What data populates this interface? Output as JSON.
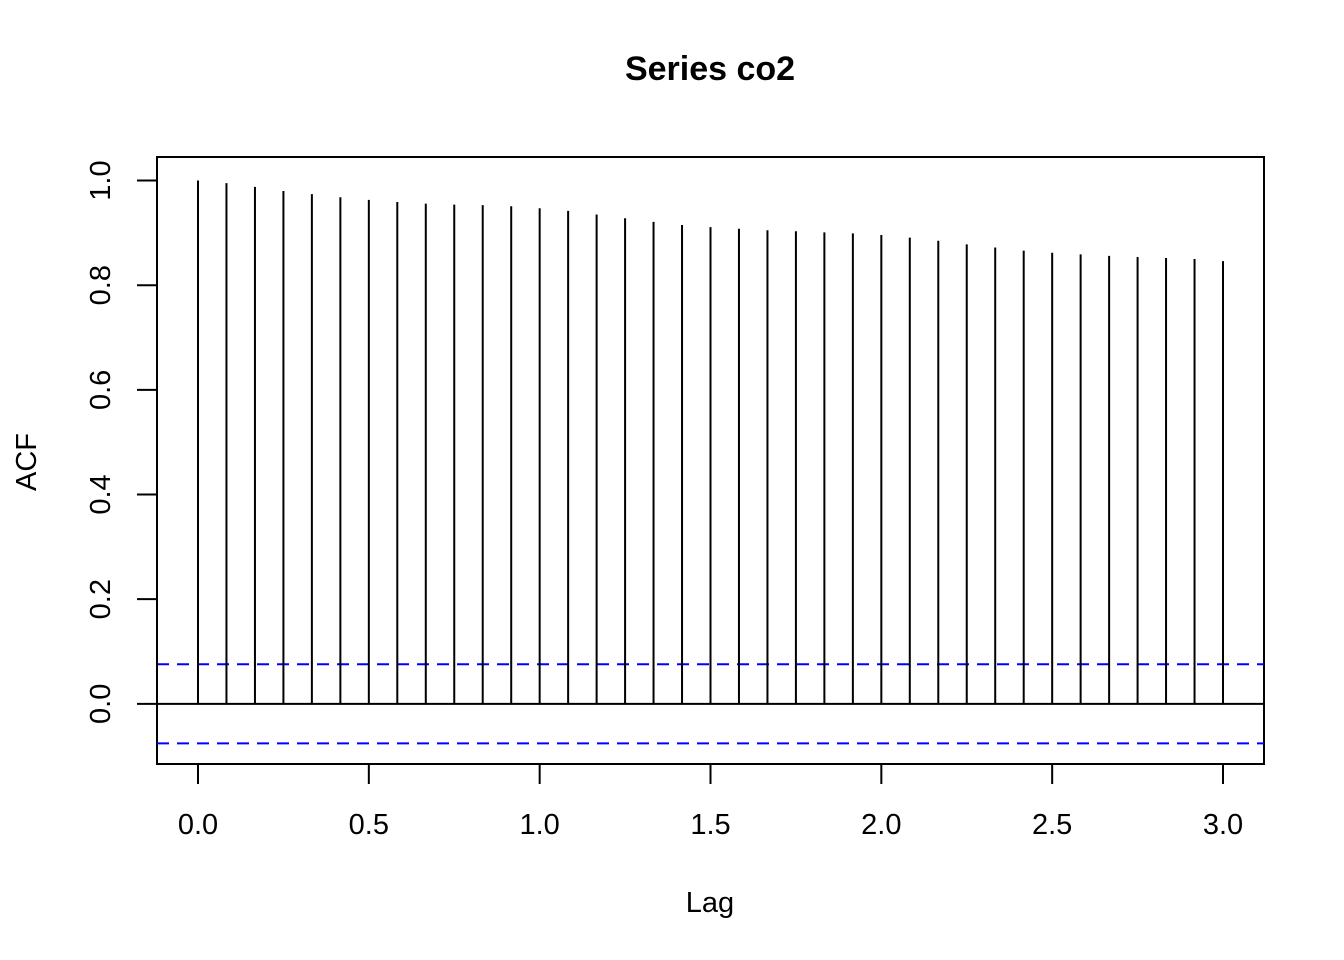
{
  "chart_data": {
    "type": "bar",
    "title": "Series  co2",
    "xlabel": "Lag",
    "ylabel": "ACF",
    "xlim": [
      -0.12,
      3.12
    ],
    "ylim": [
      -0.115,
      1.045
    ],
    "x_ticks": [
      "0.0",
      "0.5",
      "1.0",
      "1.5",
      "2.0",
      "2.5",
      "3.0"
    ],
    "y_ticks": [
      "0.0",
      "0.2",
      "0.4",
      "0.6",
      "0.8",
      "1.0"
    ],
    "lags": [
      0.0,
      0.0833,
      0.1667,
      0.25,
      0.3333,
      0.4167,
      0.5,
      0.5833,
      0.6667,
      0.75,
      0.8333,
      0.9167,
      1.0,
      1.0833,
      1.1667,
      1.25,
      1.3333,
      1.4167,
      1.5,
      1.5833,
      1.6667,
      1.75,
      1.8333,
      1.9167,
      2.0,
      2.0833,
      2.1667,
      2.25,
      2.3333,
      2.4167,
      2.5,
      2.5833,
      2.6667,
      2.75,
      2.8333,
      2.9167,
      3.0
    ],
    "values": [
      1.0,
      0.995,
      0.988,
      0.98,
      0.974,
      0.968,
      0.963,
      0.959,
      0.956,
      0.954,
      0.953,
      0.951,
      0.947,
      0.942,
      0.935,
      0.928,
      0.921,
      0.915,
      0.911,
      0.908,
      0.905,
      0.903,
      0.901,
      0.899,
      0.896,
      0.891,
      0.885,
      0.878,
      0.872,
      0.866,
      0.862,
      0.859,
      0.856,
      0.854,
      0.852,
      0.85,
      0.846
    ],
    "confidence_bound": 0.0756,
    "colors": {
      "bars": "#000000",
      "ci_lines": "#0000ff",
      "frame": "#000000"
    },
    "grid": false
  }
}
